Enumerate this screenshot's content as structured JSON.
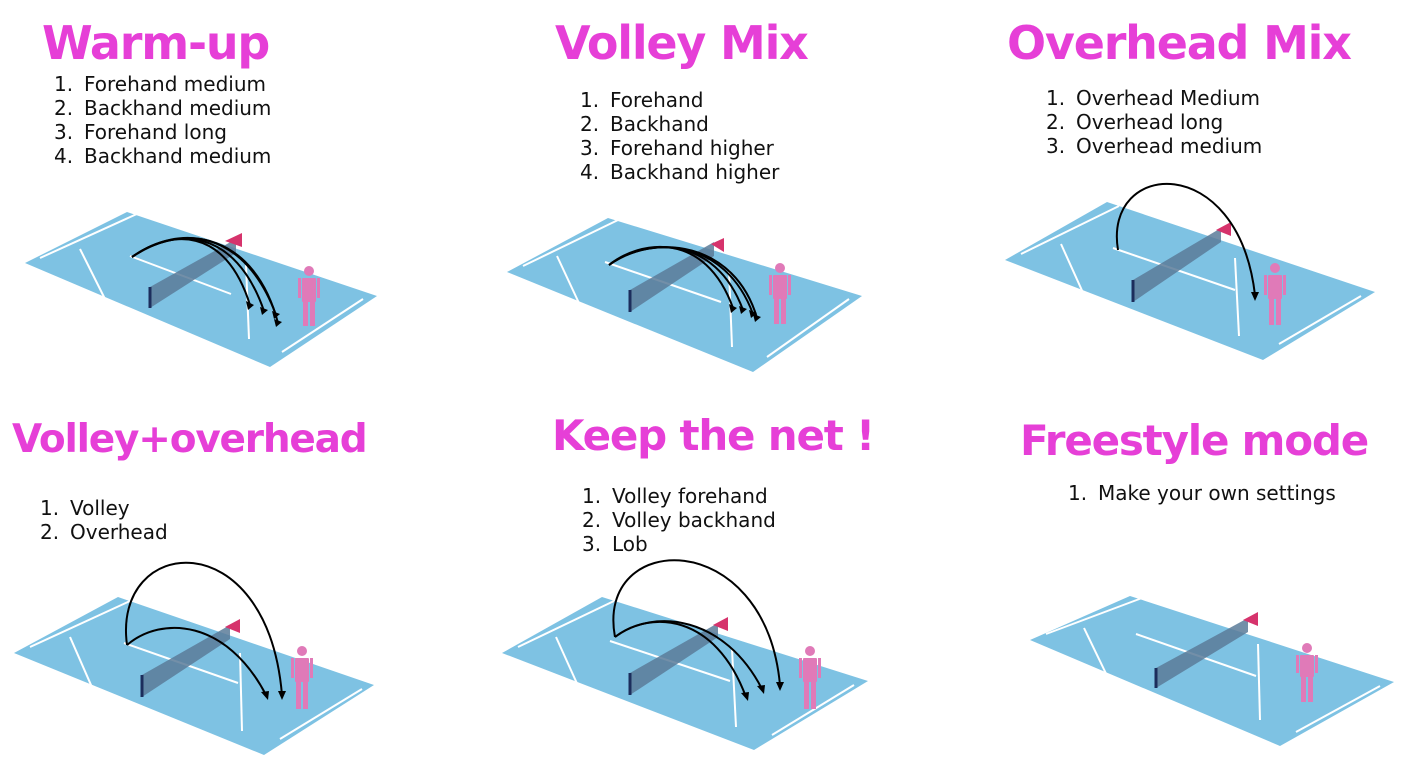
{
  "panels": [
    {
      "title": "Warm-up",
      "steps": [
        "Forehand medium",
        "Backhand medium",
        "Forehand long",
        "Backhand medium"
      ]
    },
    {
      "title": "Volley Mix",
      "steps": [
        "Forehand",
        "Backhand",
        "Forehand higher",
        "Backhand higher"
      ]
    },
    {
      "title": "Overhead Mix",
      "steps": [
        "Overhead Medium",
        "Overhead long",
        "Overhead medium"
      ]
    },
    {
      "title": "Volley+overhead",
      "steps": [
        "Volley",
        "Overhead"
      ]
    },
    {
      "title": "Keep the net !",
      "steps": [
        "Volley forehand",
        "Volley backhand",
        "Lob"
      ]
    },
    {
      "title": "Freestyle mode",
      "steps": [
        "Make your own settings"
      ]
    }
  ],
  "colors": {
    "title": "#e63fd7",
    "court": "#7ec2e3",
    "player": "#e07ab8",
    "net_post": "#d6336c",
    "trajectory": "#000000"
  },
  "icons": [
    "tennis-court",
    "player-figure",
    "ball-trajectory-arrow"
  ]
}
